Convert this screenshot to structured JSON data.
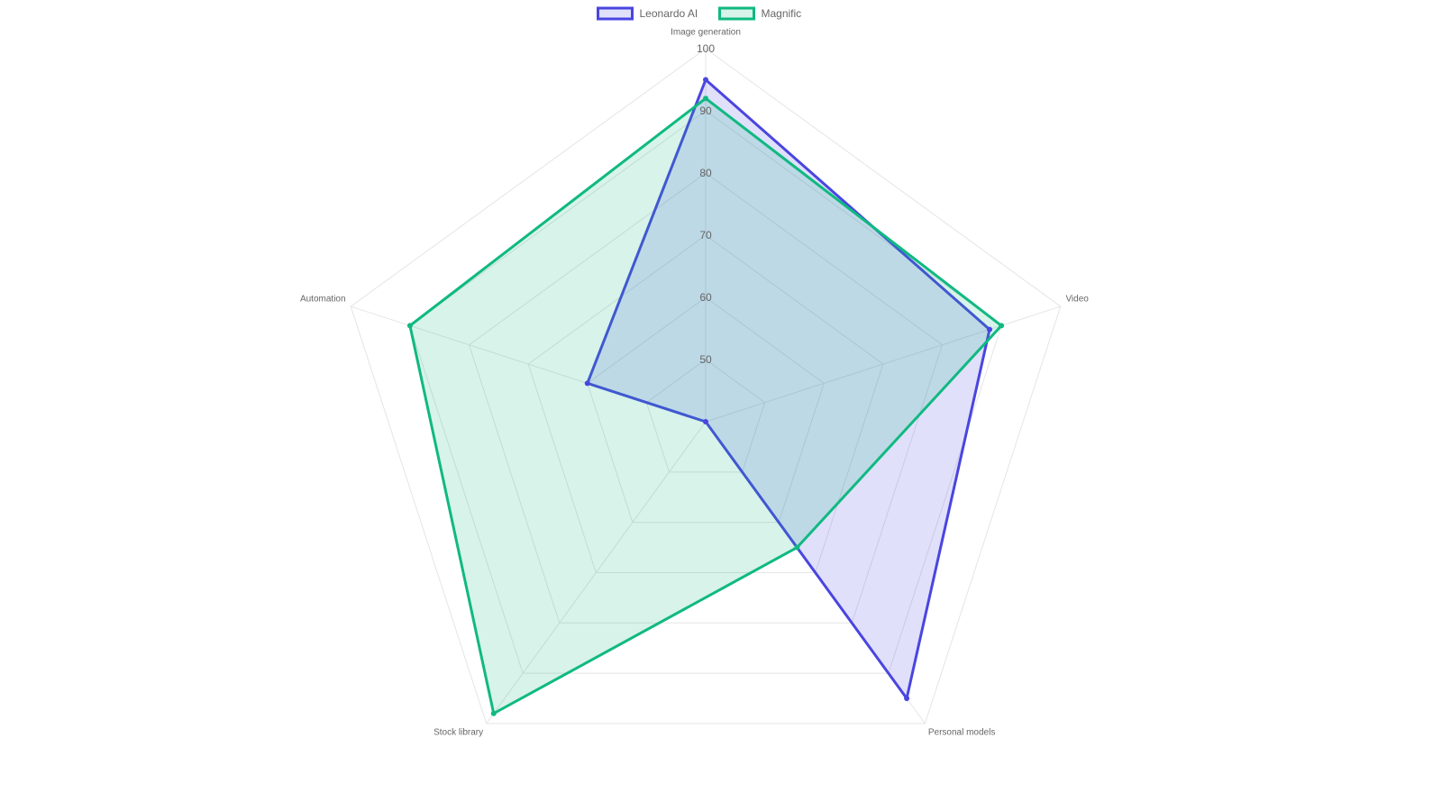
{
  "chart_data": {
    "type": "radar",
    "categories": [
      "Image generation",
      "Video",
      "Personal models",
      "Stock library",
      "Automation"
    ],
    "series": [
      {
        "name": "Leonardo AI",
        "color": "#4a45e0",
        "values": [
          95,
          88,
          95,
          40,
          60
        ]
      },
      {
        "name": "Magnific",
        "color": "#10b981",
        "values": [
          92,
          90,
          65,
          98,
          90
        ]
      }
    ],
    "rlim": [
      40,
      100
    ],
    "rticks": [
      50,
      60,
      70,
      80,
      90,
      100
    ],
    "grid": true,
    "legend": "top"
  }
}
